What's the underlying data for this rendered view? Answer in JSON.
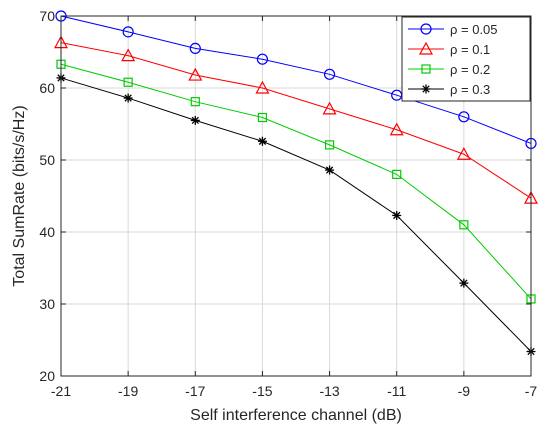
{
  "chart_data": {
    "type": "line",
    "title": "",
    "xlabel": "Self interference channel (dB)",
    "ylabel": "Total SumRate (bits/s/Hz)",
    "x": [
      -21,
      -19,
      -17,
      -15,
      -13,
      -11,
      -9,
      -7
    ],
    "xlim": [
      -21,
      -7
    ],
    "ylim": [
      20,
      70
    ],
    "xticks": [
      -21,
      -19,
      -17,
      -15,
      -13,
      -11,
      -9,
      -7
    ],
    "yticks": [
      20,
      30,
      40,
      50,
      60,
      70
    ],
    "grid": true,
    "legend_position": "top-right",
    "series": [
      {
        "name": "ρ = 0.05",
        "color": "#0000ff",
        "marker": "circle",
        "values": [
          70.0,
          67.8,
          65.5,
          64.0,
          61.9,
          59.0,
          56.0,
          52.3
        ]
      },
      {
        "name": "ρ = 0.1",
        "color": "#ff0000",
        "marker": "triangle",
        "values": [
          66.3,
          64.5,
          61.8,
          60.0,
          57.1,
          54.2,
          50.8,
          44.7
        ]
      },
      {
        "name": "ρ = 0.2",
        "color": "#00cc00",
        "marker": "square",
        "values": [
          63.3,
          60.8,
          58.1,
          55.9,
          52.1,
          48.0,
          41.0,
          30.7
        ]
      },
      {
        "name": "ρ = 0.3",
        "color": "#000000",
        "marker": "asterisk",
        "values": [
          61.4,
          58.6,
          55.5,
          52.6,
          48.6,
          42.3,
          32.9,
          23.4
        ]
      }
    ]
  }
}
